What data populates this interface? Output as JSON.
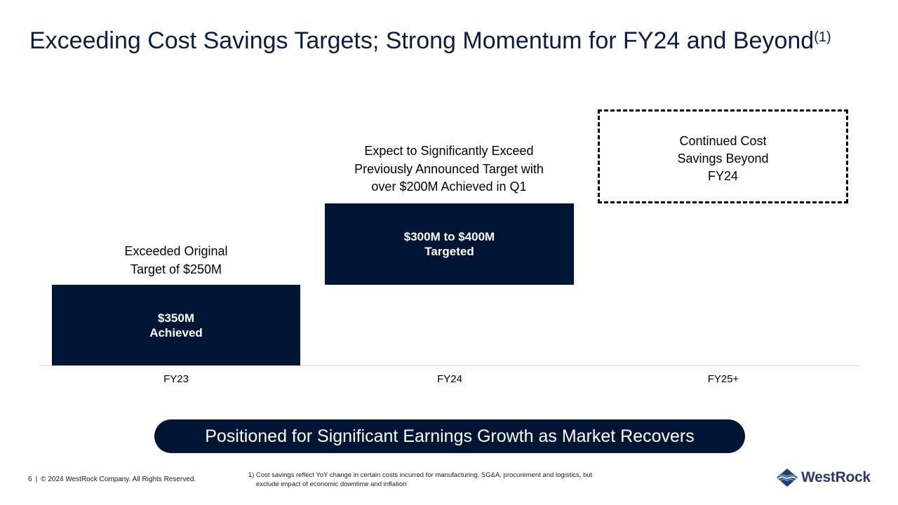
{
  "title": {
    "text": "Exceeding Cost Savings Targets; Strong Momentum for FY24 and Beyond",
    "superscript": "(1)"
  },
  "columns": [
    {
      "label": "FY23",
      "annotation_lines": [
        "Exceeded Original",
        "Target of $250M"
      ],
      "bar_lines": [
        "$350M",
        "Achieved"
      ]
    },
    {
      "label": "FY24",
      "annotation_lines": [
        "Expect to Significantly Exceed",
        "Previously Announced Target with",
        "over $200M Achieved in Q1"
      ],
      "bar_lines": [
        "$300M to $400M",
        "Targeted"
      ]
    },
    {
      "label": "FY25+",
      "box_lines": [
        "Continued Cost",
        "Savings Beyond",
        "FY24"
      ]
    }
  ],
  "banner": "Positioned for Significant Earnings Growth as Market Recovers",
  "footer": {
    "page_number": "6",
    "separator": "|",
    "copyright": "© 2024 WestRock Company. All Rights Reserved."
  },
  "footnote": {
    "marker": "1)",
    "text": "Cost savings reflect YoY change in certain costs incurred for manufacturing, SG&A, procurement and logistics, but exclude impact of economic downtime and inflation"
  },
  "logo": {
    "text": "WestRock",
    "icon": "westrock-logo-icon"
  },
  "colors": {
    "navy": "#001533",
    "title": "#0b1b45",
    "logo_blue": "#2b3a6b",
    "logo_light": "#4aa3df"
  }
}
